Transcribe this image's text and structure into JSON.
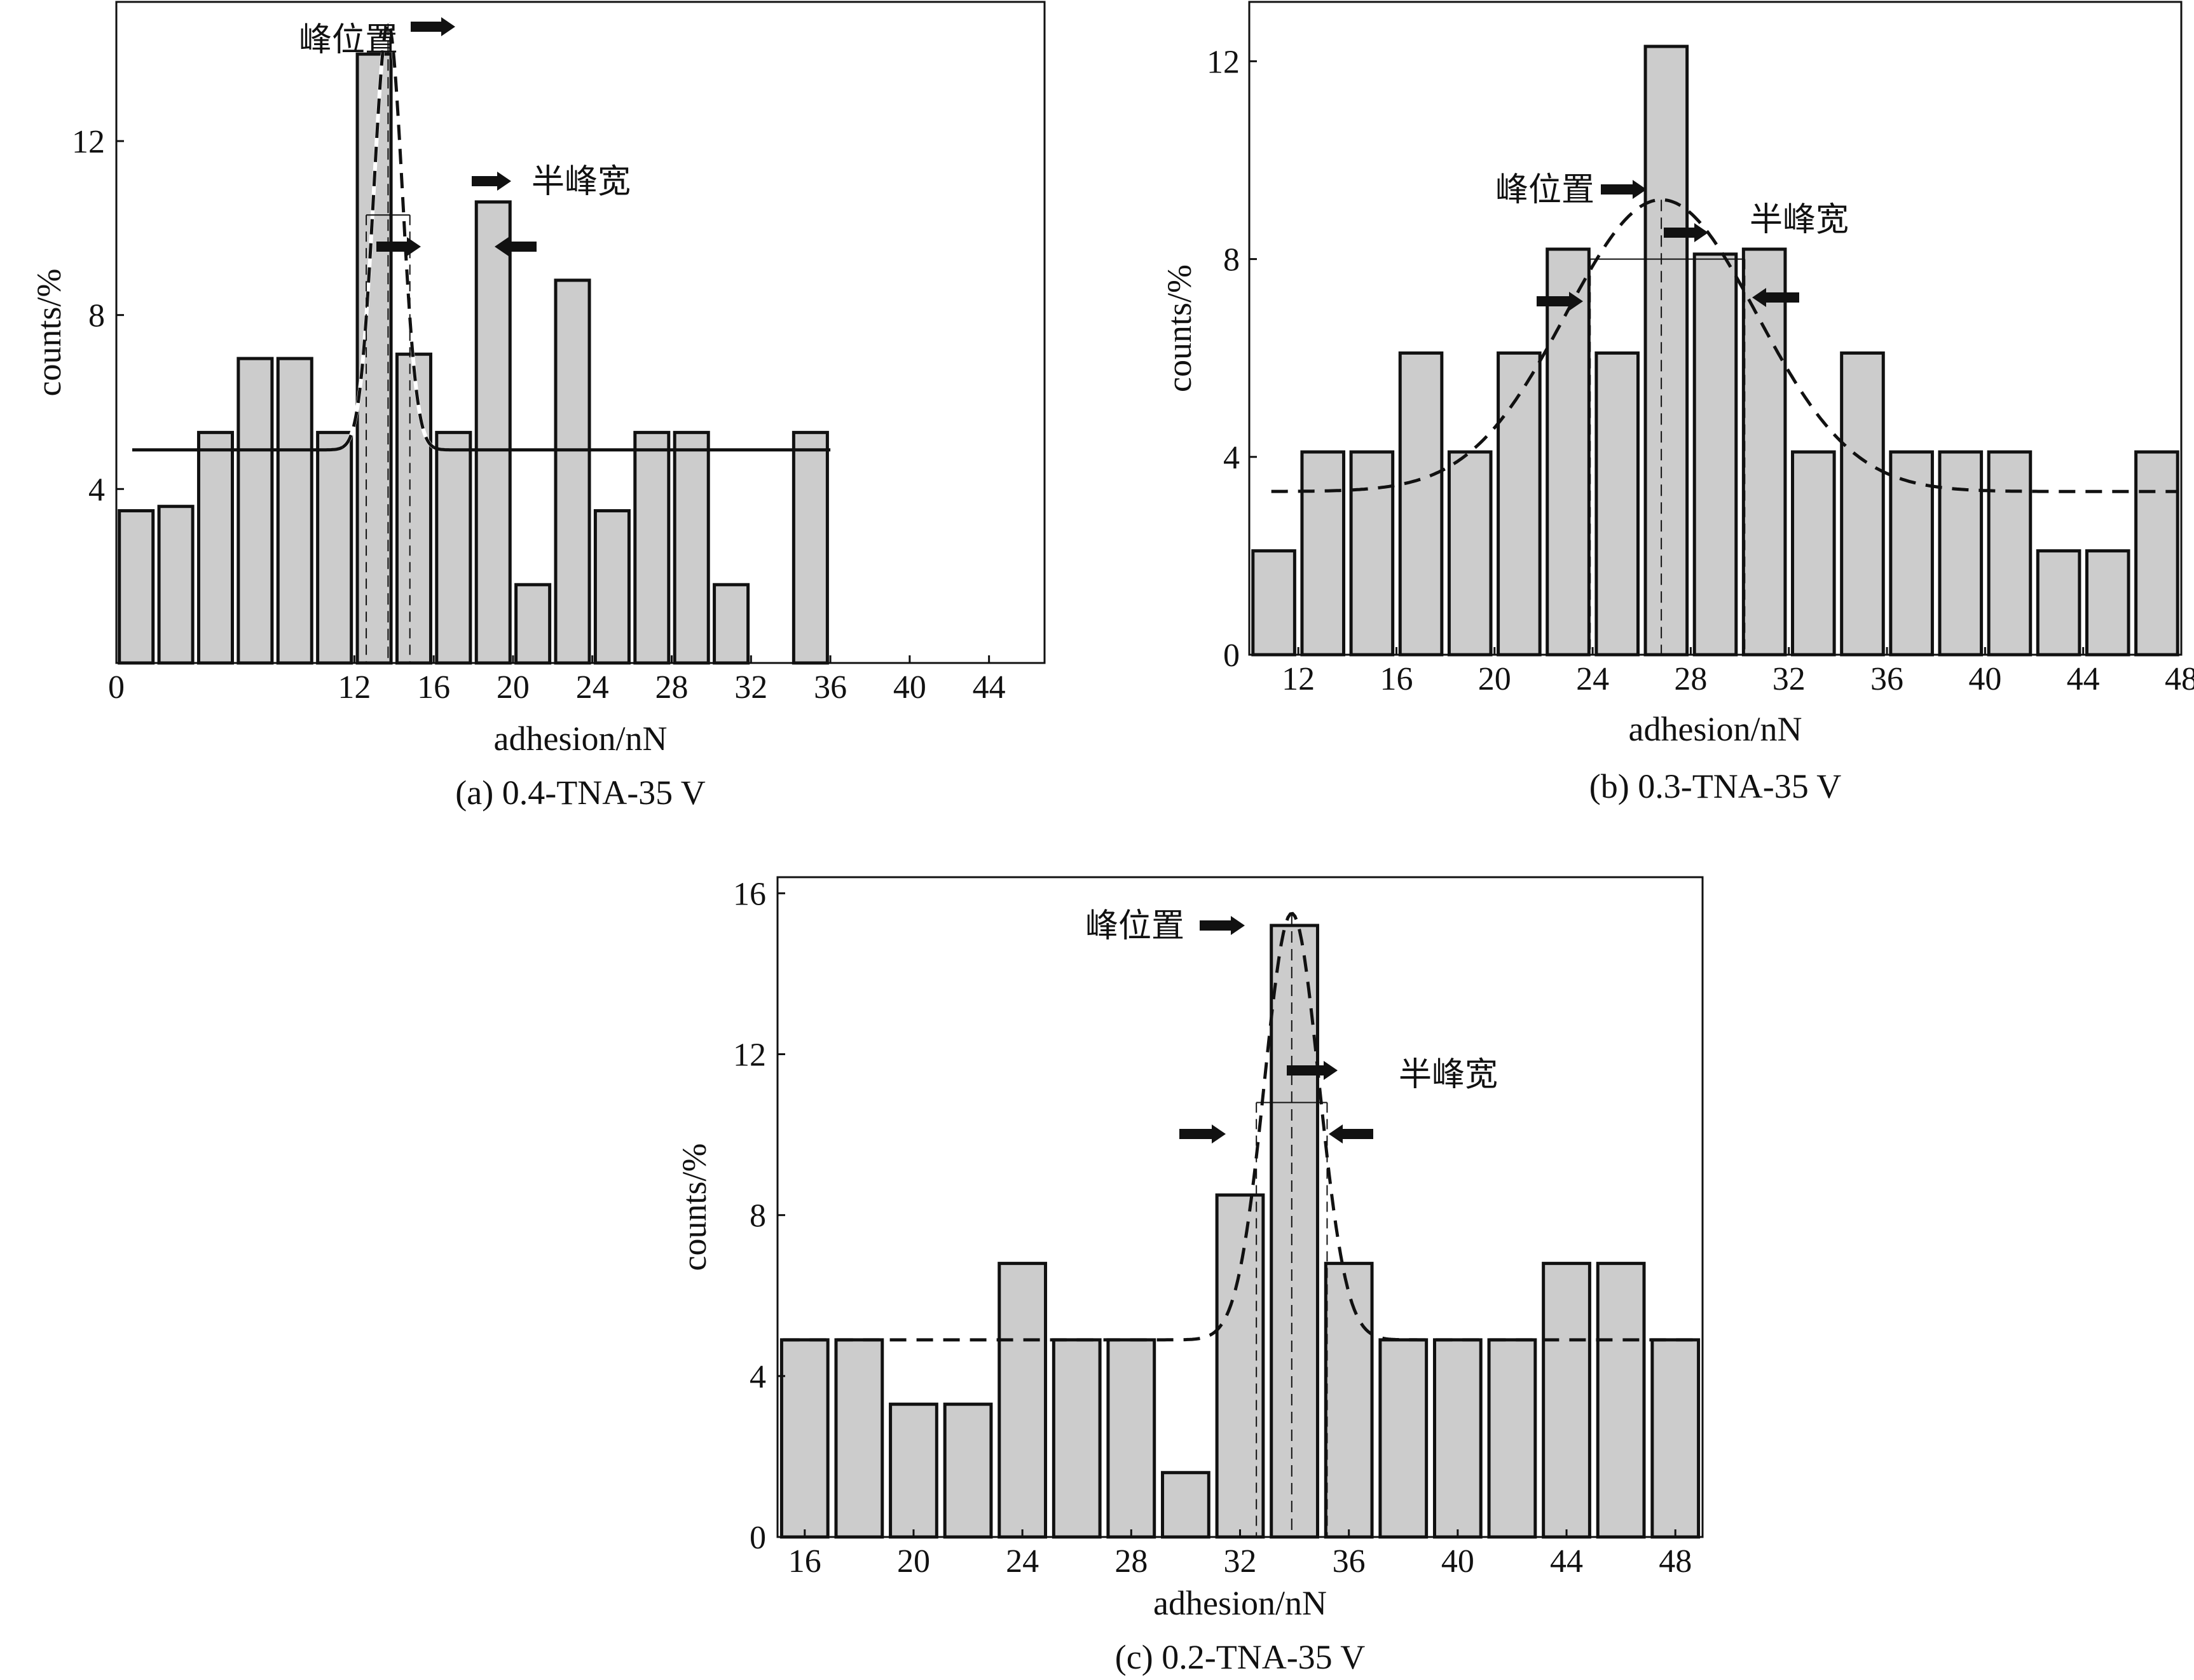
{
  "figure": {
    "colors": {
      "bar_fill": "#cccccc",
      "ink": "#111111",
      "background": "#ffffff"
    },
    "annotation_peak": "峰位置",
    "annotation_fwhm": "半峰宽"
  },
  "chart_data": [
    {
      "id": "a",
      "type": "bar",
      "caption": "(a) 0.4-TNA-35 V",
      "xlabel": "adhesion/nN",
      "ylabel": "counts/%",
      "xlim": [
        0,
        46.8
      ],
      "ylim": [
        0,
        15.2
      ],
      "x_ticks": [
        0,
        12,
        16,
        20,
        24,
        28,
        32,
        36,
        40,
        44
      ],
      "y_ticks": [
        4,
        8,
        12
      ],
      "bin_width": 2,
      "bar_width": 1.7,
      "bars": [
        {
          "x": 1,
          "value": 3.5
        },
        {
          "x": 3,
          "value": 3.6
        },
        {
          "x": 5,
          "value": 5.3
        },
        {
          "x": 7,
          "value": 7.0
        },
        {
          "x": 9,
          "value": 7.0
        },
        {
          "x": 11,
          "value": 5.3
        },
        {
          "x": 13,
          "value": 14.0
        },
        {
          "x": 15,
          "value": 7.1
        },
        {
          "x": 17,
          "value": 5.3
        },
        {
          "x": 19,
          "value": 10.6
        },
        {
          "x": 21,
          "value": 1.8
        },
        {
          "x": 23,
          "value": 8.8
        },
        {
          "x": 25,
          "value": 3.5
        },
        {
          "x": 27,
          "value": 5.3
        },
        {
          "x": 29,
          "value": 5.3
        },
        {
          "x": 31,
          "value": 1.8
        },
        {
          "x": 35,
          "value": 5.3
        }
      ],
      "fit": {
        "style": "solid-dashed",
        "baseline": 4.9,
        "amplitude": 9.8,
        "center": 13.7,
        "sigma": 0.72,
        "x_start": 0.8,
        "x_end": 36
      },
      "peak_position": 13.7,
      "half_width_range": [
        12.6,
        14.8
      ],
      "half_height": 10.3
    },
    {
      "id": "b",
      "type": "bar",
      "caption": "(b) 0.3-TNA-35 V",
      "xlabel": "adhesion/nN",
      "ylabel": "counts/%",
      "xlim": [
        10,
        48
      ],
      "ylim": [
        0,
        13.2
      ],
      "x_ticks": [
        12,
        16,
        20,
        24,
        28,
        32,
        36,
        40,
        44,
        48
      ],
      "y_ticks": [
        0,
        4,
        8,
        12
      ],
      "bin_width": 2,
      "bar_width": 1.7,
      "bars": [
        {
          "x": 11,
          "value": 2.1
        },
        {
          "x": 13,
          "value": 4.1
        },
        {
          "x": 15,
          "value": 4.1
        },
        {
          "x": 17,
          "value": 6.1
        },
        {
          "x": 19,
          "value": 4.1
        },
        {
          "x": 21,
          "value": 6.1
        },
        {
          "x": 23,
          "value": 8.2
        },
        {
          "x": 25,
          "value": 6.1
        },
        {
          "x": 27,
          "value": 12.3
        },
        {
          "x": 29,
          "value": 8.1
        },
        {
          "x": 31,
          "value": 8.2
        },
        {
          "x": 33,
          "value": 4.1
        },
        {
          "x": 35,
          "value": 6.1
        },
        {
          "x": 37,
          "value": 4.1
        },
        {
          "x": 39,
          "value": 4.1
        },
        {
          "x": 41,
          "value": 4.1
        },
        {
          "x": 43,
          "value": 2.1
        },
        {
          "x": 45,
          "value": 2.1
        },
        {
          "x": 47,
          "value": 4.1
        }
      ],
      "fit": {
        "style": "dashed",
        "baseline": 3.3,
        "amplitude": 5.9,
        "center": 26.8,
        "sigma": 3.9,
        "x_start": 10.9,
        "x_end": 47.8
      },
      "peak_position": 26.8,
      "half_width_range": [
        23.9,
        30.2
      ],
      "half_height": 8.0
    },
    {
      "id": "c",
      "type": "bar",
      "caption": "(c) 0.2-TNA-35 V",
      "xlabel": "adhesion/nN",
      "ylabel": "counts/%",
      "xlim": [
        15,
        49
      ],
      "ylim": [
        0,
        16.4
      ],
      "x_ticks": [
        16,
        20,
        24,
        28,
        32,
        36,
        40,
        44,
        48
      ],
      "y_ticks": [
        0,
        4,
        8,
        12,
        16
      ],
      "bin_width": 2,
      "bar_width": 1.7,
      "bars": [
        {
          "x": 16,
          "value": 4.9
        },
        {
          "x": 18,
          "value": 4.9
        },
        {
          "x": 20,
          "value": 3.3
        },
        {
          "x": 22,
          "value": 3.3
        },
        {
          "x": 24,
          "value": 6.8
        },
        {
          "x": 26,
          "value": 4.9
        },
        {
          "x": 28,
          "value": 4.9
        },
        {
          "x": 30,
          "value": 1.6
        },
        {
          "x": 32,
          "value": 8.5
        },
        {
          "x": 34,
          "value": 15.2
        },
        {
          "x": 36,
          "value": 6.8
        },
        {
          "x": 38,
          "value": 4.9
        },
        {
          "x": 40,
          "value": 4.9
        },
        {
          "x": 42,
          "value": 4.9
        },
        {
          "x": 44,
          "value": 6.8
        },
        {
          "x": 46,
          "value": 6.8
        },
        {
          "x": 48,
          "value": 4.9
        }
      ],
      "fit": {
        "style": "dashed",
        "baseline": 4.9,
        "amplitude": 10.6,
        "center": 33.9,
        "sigma": 1.0,
        "x_start": 15.2,
        "x_end": 48.8
      },
      "peak_position": 33.9,
      "half_width_range": [
        32.6,
        35.2
      ],
      "half_height": 10.8
    }
  ]
}
